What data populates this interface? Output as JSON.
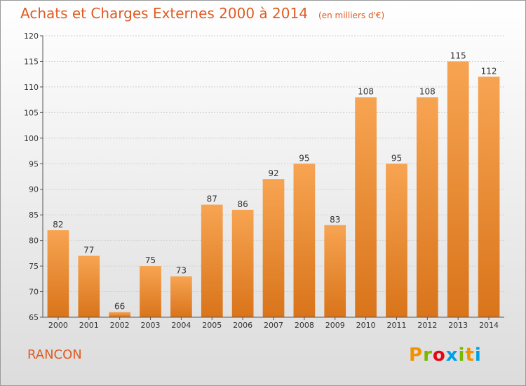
{
  "header": {
    "title": "Achats et Charges Externes 2000 à 2014",
    "unit": "(en milliers d'€)"
  },
  "footer": {
    "commune": "RANCON",
    "logo": {
      "letters": [
        "P",
        "r",
        "o",
        "x",
        "i",
        "t",
        "i"
      ],
      "colors": [
        "#f39200",
        "#7ab800",
        "#e30613",
        "#00a0e3",
        "#7ab800",
        "#f39200",
        "#00a0e3"
      ]
    }
  },
  "colors": {
    "bar_light": "#f7a452",
    "bar_dark": "#d9741a",
    "grid": "#cfcfcf",
    "axis": "#555555"
  },
  "chart_data": {
    "type": "bar",
    "title": "Achats et Charges Externes 2000 à 2014",
    "xlabel": "",
    "ylabel": "",
    "categories": [
      "2000",
      "2001",
      "2002",
      "2003",
      "2004",
      "2005",
      "2006",
      "2007",
      "2008",
      "2009",
      "2010",
      "2011",
      "2012",
      "2013",
      "2014"
    ],
    "values": [
      82,
      77,
      66,
      75,
      73,
      87,
      86,
      92,
      95,
      83,
      108,
      95,
      108,
      115,
      112
    ],
    "ylim": [
      65,
      120
    ],
    "yticks": [
      65,
      70,
      75,
      80,
      85,
      90,
      95,
      100,
      105,
      110,
      115,
      120
    ],
    "grid": true,
    "legend": "none"
  }
}
